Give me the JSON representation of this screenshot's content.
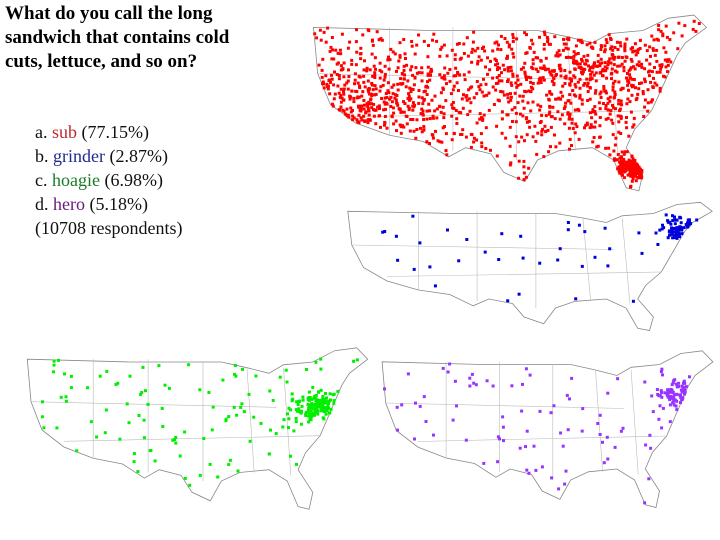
{
  "question": "What do you call the long sandwich that contains cold cuts, lettuce, and so on?",
  "options": [
    {
      "letter": "a.",
      "answer": "sub",
      "share": "(77.15%)",
      "color": "#ff0000",
      "text_color": "#c0282a"
    },
    {
      "letter": "b.",
      "answer": "grinder",
      "share": "(2.87%)",
      "color": "#0000dd",
      "text_color": "#1f2a8c"
    },
    {
      "letter": "c.",
      "answer": "hoagie",
      "share": "(6.98%)",
      "color": "#00ee00",
      "text_color": "#1b7a2a"
    },
    {
      "letter": "d.",
      "answer": "hero",
      "share": "(5.18%)",
      "color": "#9933ff",
      "text_color": "#6a1a7a"
    }
  ],
  "respondents": "(10708 respondents)"
}
